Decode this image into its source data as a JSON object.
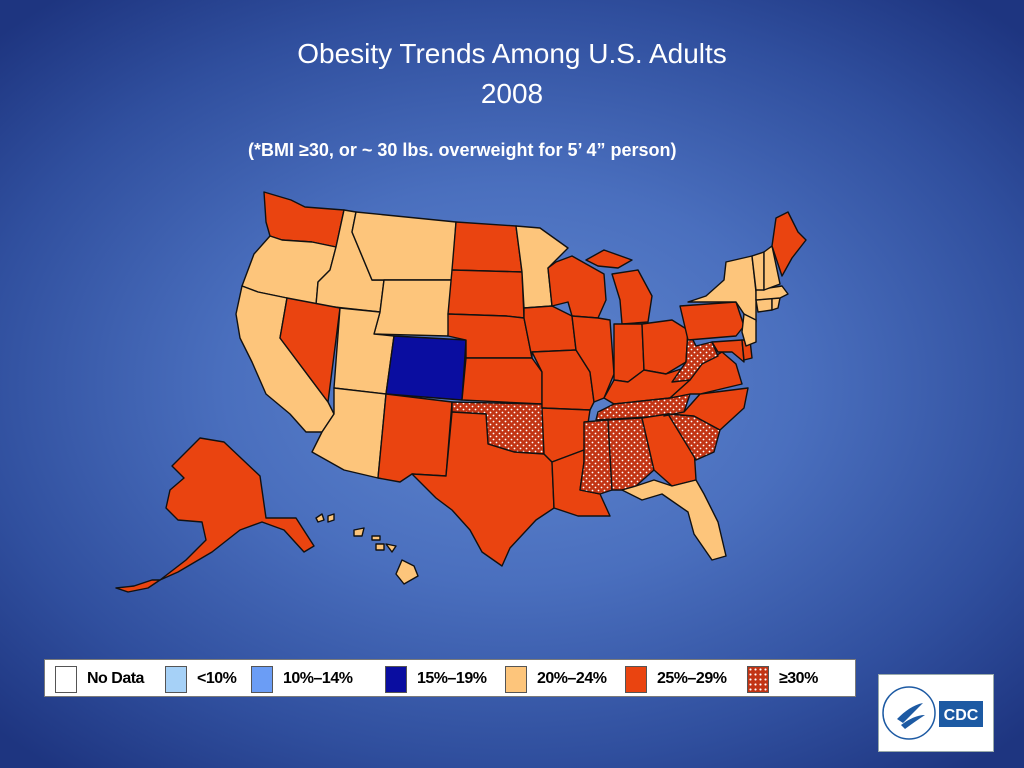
{
  "title": {
    "line1": "Obesity Trends Among U.S. Adults",
    "line2": "2008"
  },
  "subtitle": "(*BMI ≥30, or ~ 30 lbs. overweight for 5’ 4” person)",
  "colors": {
    "no_data": "#ffffff",
    "lt10": "#a6d1f7",
    "c10_14": "#6b9df5",
    "c15_19": "#0a0da0",
    "c20_24": "#fdc57b",
    "c25_29": "#ea4410",
    "ge30": "#c23414",
    "outline": "#111111"
  },
  "legend": [
    {
      "label": "No Data",
      "color": "#ffffff",
      "pattern": false
    },
    {
      "label": "<10%",
      "color": "#a6d1f7",
      "pattern": false
    },
    {
      "label": "10%–14%",
      "color": "#6b9df5",
      "pattern": false
    },
    {
      "label": "15%–19%",
      "color": "#0a0da0",
      "pattern": false
    },
    {
      "label": "20%–24%",
      "color": "#fdc57b",
      "pattern": false
    },
    {
      "label": "25%–29%",
      "color": "#ea4410",
      "pattern": false
    },
    {
      "label": "≥30%",
      "color": "#c23414",
      "pattern": true
    }
  ],
  "logo": {
    "text": "CDC",
    "color": "#1d5aa3"
  }
}
